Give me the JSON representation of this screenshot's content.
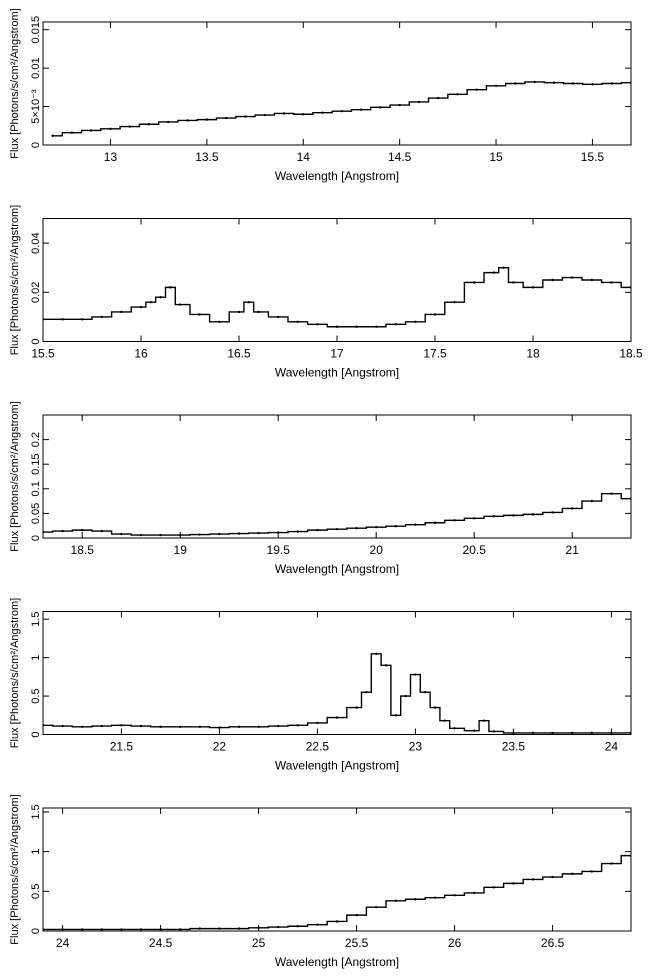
{
  "chart_data": [
    {
      "type": "line",
      "xlabel": "Wavelength [Angstrom]",
      "ylabel": "Flux [Photons/s/cm²/Angstrom]",
      "xlim": [
        12.65,
        15.7
      ],
      "ylim": [
        0,
        0.016
      ],
      "xticks": [
        13,
        13.5,
        14,
        14.5,
        15,
        15.5
      ],
      "xtick_labels": [
        "13",
        "13.5",
        "14",
        "14.5",
        "15",
        "15.5"
      ],
      "yticks": [
        0,
        0.005,
        0.01,
        0.015
      ],
      "ytick_labels": [
        "0",
        "5×10⁻³",
        "0.01",
        "0.015"
      ],
      "series": [
        {
          "values": [
            [
              12.7,
              0.0012
            ],
            [
              12.8,
              0.0016
            ],
            [
              12.9,
              0.0019
            ],
            [
              13.0,
              0.0021
            ],
            [
              13.1,
              0.0024
            ],
            [
              13.2,
              0.0027
            ],
            [
              13.3,
              0.003
            ],
            [
              13.4,
              0.0032
            ],
            [
              13.5,
              0.0033
            ],
            [
              13.6,
              0.0035
            ],
            [
              13.7,
              0.0037
            ],
            [
              13.8,
              0.0039
            ],
            [
              13.9,
              0.0041
            ],
            [
              14.0,
              0.004
            ],
            [
              14.1,
              0.0042
            ],
            [
              14.2,
              0.0044
            ],
            [
              14.3,
              0.0046
            ],
            [
              14.4,
              0.0049
            ],
            [
              14.5,
              0.0052
            ],
            [
              14.6,
              0.0056
            ],
            [
              14.7,
              0.0061
            ],
            [
              14.8,
              0.0066
            ],
            [
              14.9,
              0.0072
            ],
            [
              15.0,
              0.0077
            ],
            [
              15.1,
              0.008
            ],
            [
              15.2,
              0.0082
            ],
            [
              15.3,
              0.0081
            ],
            [
              15.4,
              0.008
            ],
            [
              15.5,
              0.0079
            ],
            [
              15.6,
              0.008
            ],
            [
              15.7,
              0.0081
            ]
          ]
        }
      ]
    },
    {
      "type": "line",
      "xlabel": "Wavelength [Angstrom]",
      "ylabel": "Flux [Photons/s/cm²/Angstrom]",
      "xlim": [
        15.5,
        18.5
      ],
      "ylim": [
        0,
        0.05
      ],
      "xticks": [
        15.5,
        16,
        16.5,
        17,
        17.5,
        18,
        18.5
      ],
      "xtick_labels": [
        "15.5",
        "16",
        "16.5",
        "17",
        "17.5",
        "18",
        "18.5"
      ],
      "yticks": [
        0,
        0.02,
        0.04
      ],
      "ytick_labels": [
        "0",
        "0.02",
        "0.04"
      ],
      "series": [
        {
          "values": [
            [
              15.5,
              0.009
            ],
            [
              15.6,
              0.009
            ],
            [
              15.7,
              0.009
            ],
            [
              15.8,
              0.01
            ],
            [
              15.9,
              0.012
            ],
            [
              16.0,
              0.014
            ],
            [
              16.05,
              0.016
            ],
            [
              16.1,
              0.018
            ],
            [
              16.15,
              0.022
            ],
            [
              16.2,
              0.015
            ],
            [
              16.3,
              0.011
            ],
            [
              16.4,
              0.008
            ],
            [
              16.5,
              0.012
            ],
            [
              16.55,
              0.016
            ],
            [
              16.6,
              0.012
            ],
            [
              16.7,
              0.01
            ],
            [
              16.8,
              0.008
            ],
            [
              16.9,
              0.007
            ],
            [
              17.0,
              0.006
            ],
            [
              17.1,
              0.006
            ],
            [
              17.2,
              0.006
            ],
            [
              17.3,
              0.007
            ],
            [
              17.4,
              0.008
            ],
            [
              17.5,
              0.011
            ],
            [
              17.6,
              0.016
            ],
            [
              17.7,
              0.024
            ],
            [
              17.8,
              0.028
            ],
            [
              17.85,
              0.03
            ],
            [
              17.9,
              0.024
            ],
            [
              18.0,
              0.022
            ],
            [
              18.1,
              0.025
            ],
            [
              18.2,
              0.026
            ],
            [
              18.3,
              0.025
            ],
            [
              18.4,
              0.024
            ],
            [
              18.5,
              0.022
            ]
          ]
        }
      ]
    },
    {
      "type": "line",
      "xlabel": "Wavelength [Angstrom]",
      "ylabel": "Flux [Photons/s/cm²/Angstrom]",
      "xlim": [
        18.3,
        21.3
      ],
      "ylim": [
        0,
        0.25
      ],
      "xticks": [
        18.5,
        19,
        19.5,
        20,
        20.5,
        21
      ],
      "xtick_labels": [
        "18.5",
        "19",
        "19.5",
        "20",
        "20.5",
        "21"
      ],
      "yticks": [
        0,
        0.05,
        0.1,
        0.15,
        0.2
      ],
      "ytick_labels": [
        "0",
        "0.05",
        "0.1",
        "0.15",
        "0.2"
      ],
      "series": [
        {
          "values": [
            [
              18.3,
              0.012
            ],
            [
              18.4,
              0.014
            ],
            [
              18.5,
              0.016
            ],
            [
              18.6,
              0.014
            ],
            [
              18.7,
              0.008
            ],
            [
              18.8,
              0.006
            ],
            [
              18.9,
              0.006
            ],
            [
              19.0,
              0.006
            ],
            [
              19.1,
              0.007
            ],
            [
              19.2,
              0.008
            ],
            [
              19.3,
              0.009
            ],
            [
              19.4,
              0.01
            ],
            [
              19.5,
              0.011
            ],
            [
              19.6,
              0.013
            ],
            [
              19.7,
              0.016
            ],
            [
              19.8,
              0.018
            ],
            [
              19.9,
              0.02
            ],
            [
              20.0,
              0.022
            ],
            [
              20.1,
              0.024
            ],
            [
              20.2,
              0.027
            ],
            [
              20.3,
              0.031
            ],
            [
              20.4,
              0.036
            ],
            [
              20.5,
              0.04
            ],
            [
              20.6,
              0.044
            ],
            [
              20.7,
              0.046
            ],
            [
              20.8,
              0.048
            ],
            [
              20.9,
              0.052
            ],
            [
              21.0,
              0.06
            ],
            [
              21.1,
              0.075
            ],
            [
              21.2,
              0.09
            ],
            [
              21.3,
              0.08
            ]
          ]
        }
      ]
    },
    {
      "type": "line",
      "xlabel": "Wavelength [Angstrom]",
      "ylabel": "Flux [Photons/s/cm²/Angstrom]",
      "xlim": [
        21.1,
        24.1
      ],
      "ylim": [
        0,
        1.6
      ],
      "xticks": [
        21.5,
        22,
        22.5,
        23,
        23.5,
        24
      ],
      "xtick_labels": [
        "21.5",
        "22",
        "22.5",
        "23",
        "23.5",
        "24"
      ],
      "yticks": [
        0,
        0.5,
        1,
        1.5
      ],
      "ytick_labels": [
        "0",
        "0.5",
        "1",
        "1.5"
      ],
      "series": [
        {
          "values": [
            [
              21.1,
              0.12
            ],
            [
              21.2,
              0.11
            ],
            [
              21.3,
              0.1
            ],
            [
              21.4,
              0.11
            ],
            [
              21.5,
              0.12
            ],
            [
              21.6,
              0.11
            ],
            [
              21.7,
              0.1
            ],
            [
              21.8,
              0.1
            ],
            [
              21.9,
              0.1
            ],
            [
              22.0,
              0.09
            ],
            [
              22.1,
              0.1
            ],
            [
              22.2,
              0.1
            ],
            [
              22.3,
              0.11
            ],
            [
              22.4,
              0.12
            ],
            [
              22.5,
              0.15
            ],
            [
              22.6,
              0.22
            ],
            [
              22.7,
              0.35
            ],
            [
              22.75,
              0.55
            ],
            [
              22.8,
              1.05
            ],
            [
              22.85,
              0.9
            ],
            [
              22.9,
              0.25
            ],
            [
              22.95,
              0.5
            ],
            [
              23.0,
              0.78
            ],
            [
              23.05,
              0.55
            ],
            [
              23.1,
              0.35
            ],
            [
              23.15,
              0.18
            ],
            [
              23.2,
              0.08
            ],
            [
              23.3,
              0.05
            ],
            [
              23.35,
              0.18
            ],
            [
              23.4,
              0.04
            ],
            [
              23.5,
              0.02
            ],
            [
              23.6,
              0.02
            ],
            [
              23.7,
              0.02
            ],
            [
              23.8,
              0.02
            ],
            [
              23.9,
              0.02
            ],
            [
              24.0,
              0.02
            ],
            [
              24.1,
              0.02
            ]
          ]
        }
      ]
    },
    {
      "type": "line",
      "xlabel": "Wavelength [Angstrom]",
      "ylabel": "Flux [Photons/s/cm²/Angstrom]",
      "xlim": [
        23.9,
        26.9
      ],
      "ylim": [
        0,
        1.55
      ],
      "xticks": [
        24,
        24.5,
        25,
        25.5,
        26,
        26.5
      ],
      "xtick_labels": [
        "24",
        "24.5",
        "25",
        "25.5",
        "26",
        "26.5"
      ],
      "yticks": [
        0,
        0.5,
        1,
        1.5
      ],
      "ytick_labels": [
        "0",
        "0.5",
        "1",
        "1.5"
      ],
      "series": [
        {
          "values": [
            [
              23.9,
              0.02
            ],
            [
              24.0,
              0.02
            ],
            [
              24.1,
              0.02
            ],
            [
              24.2,
              0.02
            ],
            [
              24.3,
              0.02
            ],
            [
              24.4,
              0.02
            ],
            [
              24.5,
              0.02
            ],
            [
              24.6,
              0.02
            ],
            [
              24.7,
              0.03
            ],
            [
              24.8,
              0.03
            ],
            [
              24.9,
              0.03
            ],
            [
              25.0,
              0.04
            ],
            [
              25.1,
              0.05
            ],
            [
              25.2,
              0.06
            ],
            [
              25.3,
              0.08
            ],
            [
              25.4,
              0.12
            ],
            [
              25.5,
              0.2
            ],
            [
              25.6,
              0.3
            ],
            [
              25.7,
              0.38
            ],
            [
              25.8,
              0.4
            ],
            [
              25.9,
              0.42
            ],
            [
              26.0,
              0.45
            ],
            [
              26.1,
              0.48
            ],
            [
              26.2,
              0.55
            ],
            [
              26.3,
              0.6
            ],
            [
              26.4,
              0.65
            ],
            [
              26.5,
              0.68
            ],
            [
              26.6,
              0.72
            ],
            [
              26.7,
              0.75
            ],
            [
              26.8,
              0.85
            ],
            [
              26.9,
              0.95
            ]
          ]
        }
      ]
    }
  ]
}
